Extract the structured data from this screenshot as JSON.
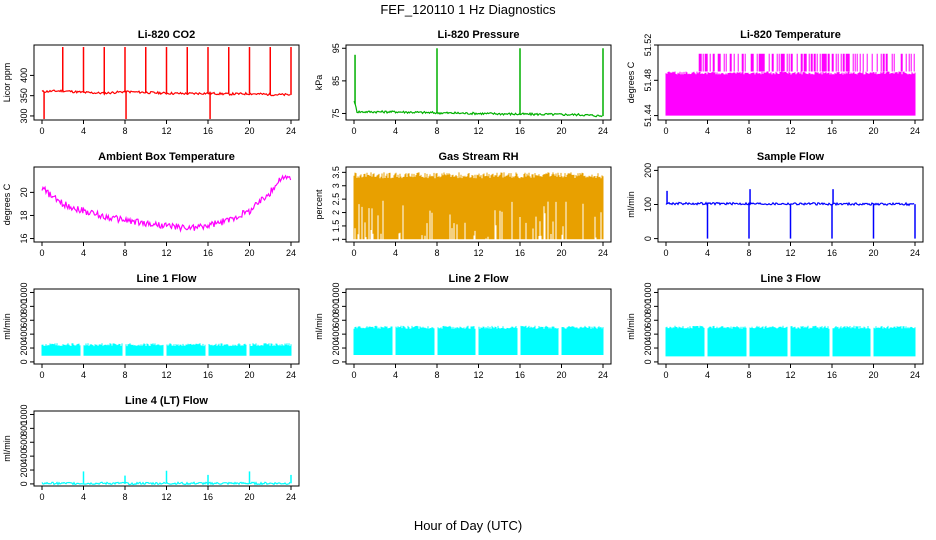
{
  "page": {
    "title": "FEF_120110  1 Hz Diagnostics",
    "x_axis_title": "Hour of Day (UTC)"
  },
  "chart_data": [
    {
      "type": "line",
      "title": "Li-820 CO2",
      "xlabel": "",
      "ylabel": "Licor ppm",
      "color": "#ff0000",
      "xlim": [
        0,
        24
      ],
      "ylim": [
        290,
        475
      ],
      "xticks": [
        0,
        4,
        8,
        12,
        16,
        20,
        24
      ],
      "yticks": [
        300,
        350,
        400
      ],
      "series": [
        {
          "x": [
            0,
            2,
            4,
            6,
            8,
            10,
            12,
            14,
            16,
            18,
            20,
            22,
            24
          ],
          "y": [
            360,
            362,
            358,
            356,
            360,
            358,
            356,
            355,
            356,
            354,
            355,
            353,
            352
          ]
        }
      ],
      "spikes": [
        {
          "x": 0.2,
          "y": 290
        },
        {
          "x": 2,
          "y": 470
        },
        {
          "x": 4,
          "y": 470
        },
        {
          "x": 6,
          "y": 470
        },
        {
          "x": 8,
          "y": 470
        },
        {
          "x": 8.1,
          "y": 290
        },
        {
          "x": 10,
          "y": 470
        },
        {
          "x": 12,
          "y": 470
        },
        {
          "x": 14,
          "y": 470
        },
        {
          "x": 16,
          "y": 470
        },
        {
          "x": 16.2,
          "y": 290
        },
        {
          "x": 18,
          "y": 470
        },
        {
          "x": 20,
          "y": 470
        },
        {
          "x": 22,
          "y": 470
        },
        {
          "x": 24,
          "y": 470
        }
      ]
    },
    {
      "type": "line",
      "title": "Li-820 Pressure",
      "xlabel": "",
      "ylabel": "kPa",
      "color": "#00b000",
      "xlim": [
        0,
        24
      ],
      "ylim": [
        73,
        96
      ],
      "xticks": [
        0,
        4,
        8,
        12,
        16,
        20,
        24
      ],
      "yticks": [
        75,
        85,
        95
      ],
      "series": [
        {
          "x": [
            0,
            0.3,
            4,
            8,
            12,
            16,
            20,
            22,
            24
          ],
          "y": [
            79,
            75.5,
            75.5,
            75.2,
            75,
            74.8,
            74.7,
            74.6,
            74.2
          ]
        }
      ],
      "spikes": [
        {
          "x": 0.1,
          "y": 93
        },
        {
          "x": 8,
          "y": 95
        },
        {
          "x": 16,
          "y": 95
        },
        {
          "x": 24,
          "y": 95
        }
      ]
    },
    {
      "type": "area",
      "title": "Li-820 Temperature",
      "xlabel": "",
      "ylabel": "degrees C",
      "color": "#ff00ff",
      "xlim": [
        0,
        24
      ],
      "ylim": [
        51.435,
        51.52
      ],
      "xticks": [
        0,
        4,
        8,
        12,
        16,
        20,
        24
      ],
      "yticks": [
        51.44,
        51.48,
        51.52
      ],
      "band": {
        "x": [
          0,
          24
        ],
        "low": 51.44,
        "high": 51.49
      },
      "upper_band": {
        "x": [
          3.2,
          24
        ],
        "low": 51.49,
        "high": 51.51
      }
    },
    {
      "type": "line",
      "title": "Ambient Box Temperature",
      "xlabel": "",
      "ylabel": "degrees C",
      "color": "#ff00ff",
      "xlim": [
        0,
        24
      ],
      "ylim": [
        15.7,
        22.2
      ],
      "xticks": [
        0,
        4,
        8,
        12,
        16,
        20,
        24
      ],
      "yticks": [
        16,
        18,
        20
      ],
      "series": [
        {
          "x": [
            0,
            1,
            2,
            4,
            6,
            8,
            10,
            12,
            14,
            16,
            18,
            20,
            22,
            23,
            24
          ],
          "y": [
            20.4,
            19.6,
            19.0,
            18.4,
            17.9,
            17.6,
            17.3,
            17.1,
            16.9,
            17.1,
            17.6,
            18.4,
            20.0,
            21.2,
            21.3
          ]
        }
      ]
    },
    {
      "type": "area",
      "title": "Gas Stream RH",
      "xlabel": "",
      "ylabel": "percent",
      "color": "#e8a000",
      "xlim": [
        0,
        24
      ],
      "ylim": [
        0.9,
        3.7
      ],
      "xticks": [
        0,
        4,
        8,
        12,
        16,
        20,
        24
      ],
      "yticks": [
        1.0,
        1.5,
        2.0,
        2.5,
        3.0,
        3.5
      ],
      "band": {
        "x": [
          0,
          24
        ],
        "low": 1.0,
        "high": 3.5
      }
    },
    {
      "type": "line",
      "title": "Sample Flow",
      "xlabel": "",
      "ylabel": "ml/min",
      "color": "#0000ff",
      "xlim": [
        0,
        24
      ],
      "ylim": [
        -10,
        210
      ],
      "xticks": [
        0,
        4,
        8,
        12,
        16,
        20,
        24
      ],
      "yticks": [
        0,
        100,
        200
      ],
      "series": [
        {
          "x": [
            0,
            24
          ],
          "y": [
            103,
            101
          ]
        }
      ],
      "spikes": [
        {
          "x": 0.1,
          "y": 140
        },
        {
          "x": 4,
          "y": 0
        },
        {
          "x": 8,
          "y": 0
        },
        {
          "x": 8.1,
          "y": 145
        },
        {
          "x": 12,
          "y": 0
        },
        {
          "x": 16,
          "y": 0
        },
        {
          "x": 16.1,
          "y": 145
        },
        {
          "x": 20,
          "y": 0
        },
        {
          "x": 24,
          "y": 0
        }
      ]
    },
    {
      "type": "area",
      "title": "Line 1 Flow",
      "xlabel": "",
      "ylabel": "ml/min",
      "color": "#00ffff",
      "xlim": [
        0,
        24
      ],
      "ylim": [
        -30,
        1050
      ],
      "xticks": [
        0,
        4,
        8,
        12,
        16,
        20,
        24
      ],
      "yticks": [
        0,
        200,
        400,
        600,
        800,
        1000
      ],
      "band": {
        "x": [
          0,
          24
        ],
        "low": 90,
        "high": 270
      },
      "gaps": [
        3.9,
        7.9,
        11.9,
        15.9,
        19.9
      ]
    },
    {
      "type": "area",
      "title": "Line 2 Flow",
      "xlabel": "",
      "ylabel": "ml/min",
      "color": "#00ffff",
      "xlim": [
        0,
        24
      ],
      "ylim": [
        -30,
        1050
      ],
      "xticks": [
        0,
        4,
        8,
        12,
        16,
        20,
        24
      ],
      "yticks": [
        0,
        200,
        400,
        600,
        800,
        1000
      ],
      "band": {
        "x": [
          0,
          24
        ],
        "low": 100,
        "high": 520
      },
      "gaps": [
        3.9,
        7.9,
        11.9,
        15.9,
        19.9
      ]
    },
    {
      "type": "area",
      "title": "Line 3 Flow",
      "xlabel": "",
      "ylabel": "ml/min",
      "color": "#00ffff",
      "xlim": [
        0,
        24
      ],
      "ylim": [
        -30,
        1050
      ],
      "xticks": [
        0,
        4,
        8,
        12,
        16,
        20,
        24
      ],
      "yticks": [
        0,
        200,
        400,
        600,
        800,
        1000
      ],
      "band": {
        "x": [
          0,
          24
        ],
        "low": 80,
        "high": 520
      },
      "gaps": [
        3.9,
        7.9,
        11.9,
        15.9,
        19.9
      ]
    },
    {
      "type": "line",
      "title": "Line 4 (LT) Flow",
      "xlabel": "",
      "ylabel": "ml/min",
      "color": "#00ffff",
      "xlim": [
        0,
        24
      ],
      "ylim": [
        -30,
        1050
      ],
      "xticks": [
        0,
        4,
        8,
        12,
        16,
        20,
        24
      ],
      "yticks": [
        0,
        200,
        400,
        600,
        800,
        1000
      ],
      "series": [
        {
          "x": [
            0,
            24
          ],
          "y": [
            8,
            8
          ]
        }
      ],
      "spikes": [
        {
          "x": 4,
          "y": 180
        },
        {
          "x": 8,
          "y": 120
        },
        {
          "x": 12,
          "y": 190
        },
        {
          "x": 16,
          "y": 130
        },
        {
          "x": 20,
          "y": 180
        },
        {
          "x": 24,
          "y": 130
        }
      ]
    }
  ]
}
